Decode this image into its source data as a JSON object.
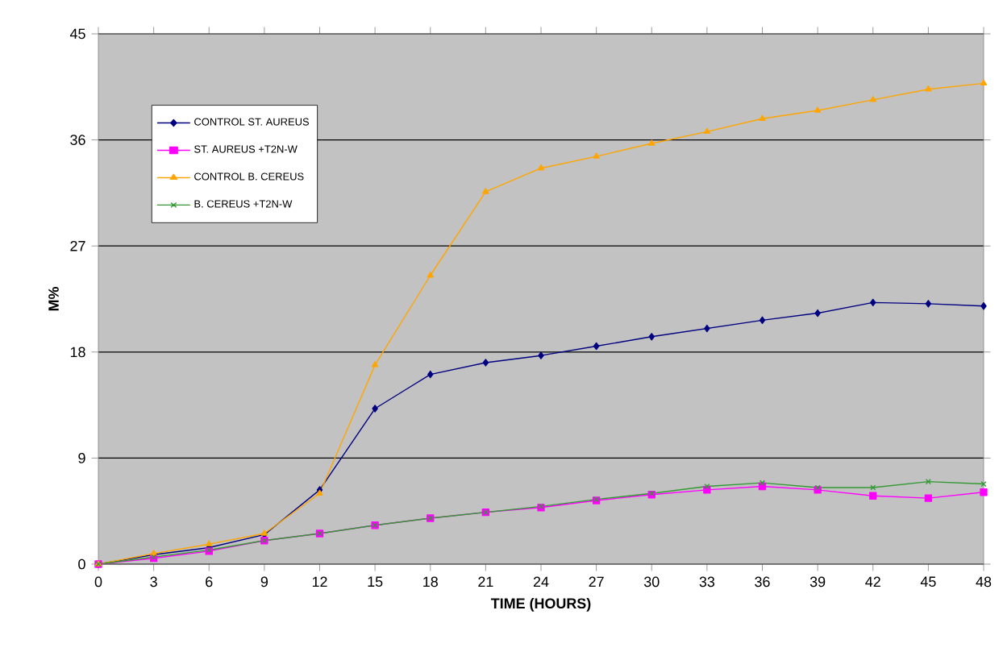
{
  "chart_data": {
    "type": "line",
    "xlabel": "TIME (HOURS)",
    "ylabel": "M%",
    "x": [
      0,
      3,
      6,
      9,
      12,
      15,
      18,
      21,
      24,
      27,
      30,
      33,
      36,
      39,
      42,
      45,
      48
    ],
    "series": [
      {
        "name": "CONTROL ST. AUREUS",
        "color": "#000080",
        "marker": "diamond",
        "values": [
          0,
          0.8,
          1.4,
          2.5,
          6.3,
          13.2,
          16.1,
          17.1,
          17.7,
          18.5,
          19.3,
          20.0,
          20.7,
          21.3,
          22.2,
          22.1,
          21.9
        ]
      },
      {
        "name": "ST. AUREUS +T2N-W",
        "color": "#ff00ff",
        "marker": "square",
        "values": [
          0,
          0.5,
          1.1,
          2.0,
          2.6,
          3.3,
          3.9,
          4.4,
          4.8,
          5.4,
          5.9,
          6.3,
          6.6,
          6.3,
          5.8,
          5.6,
          6.1
        ]
      },
      {
        "name": "CONTROL B. CEREUS",
        "color": "#ffa500",
        "marker": "triangle",
        "values": [
          0,
          0.9,
          1.7,
          2.6,
          6.0,
          16.9,
          24.5,
          31.6,
          33.6,
          34.6,
          35.7,
          36.7,
          37.8,
          38.5,
          39.4,
          40.3,
          40.8
        ]
      },
      {
        "name": "B. CEREUS +T2N-W",
        "color": "#339933",
        "marker": "cross",
        "values": [
          0,
          0.6,
          1.2,
          2.0,
          2.6,
          3.3,
          3.9,
          4.4,
          4.9,
          5.5,
          6.0,
          6.6,
          6.9,
          6.5,
          6.5,
          7.0,
          6.8
        ]
      }
    ],
    "xlim": [
      0,
      48
    ],
    "ylim": [
      0,
      45
    ],
    "xticks": [
      0,
      3,
      6,
      9,
      12,
      15,
      18,
      21,
      24,
      27,
      30,
      33,
      36,
      39,
      42,
      45,
      48
    ],
    "yticks": [
      0,
      9,
      18,
      27,
      36,
      45
    ],
    "grid": "y",
    "legend": "top left"
  }
}
